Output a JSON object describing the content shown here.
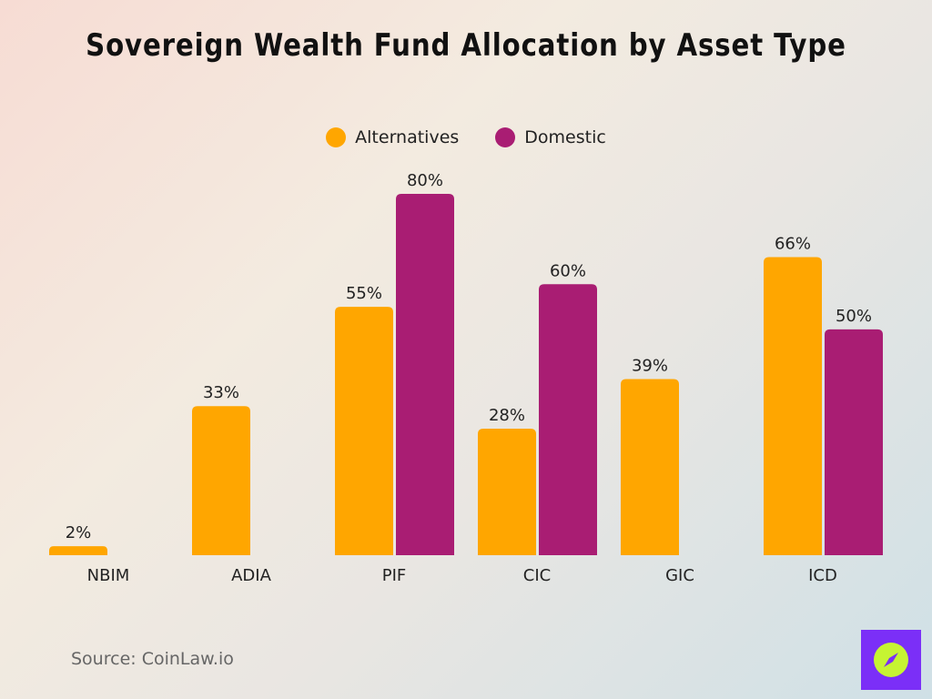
{
  "chart_data": {
    "type": "bar",
    "title": "Sovereign Wealth Fund Allocation by Asset Type",
    "categories": [
      "NBIM",
      "ADIA",
      "PIF",
      "CIC",
      "GIC",
      "ICD"
    ],
    "series": [
      {
        "name": "Alternatives",
        "color": "#FFA600",
        "values": [
          2,
          33,
          55,
          28,
          39,
          66
        ]
      },
      {
        "name": "Domestic",
        "color": "#A91D73",
        "values": [
          null,
          null,
          80,
          60,
          null,
          50
        ]
      }
    ],
    "value_suffix": "%",
    "ylim": [
      0,
      80
    ],
    "grid": false,
    "legend_position": "top-center"
  },
  "source": "Source: CoinLaw.io",
  "logo": {
    "icon": "compass-icon",
    "background": "#7B2FF7",
    "accent": "#C6F432"
  }
}
